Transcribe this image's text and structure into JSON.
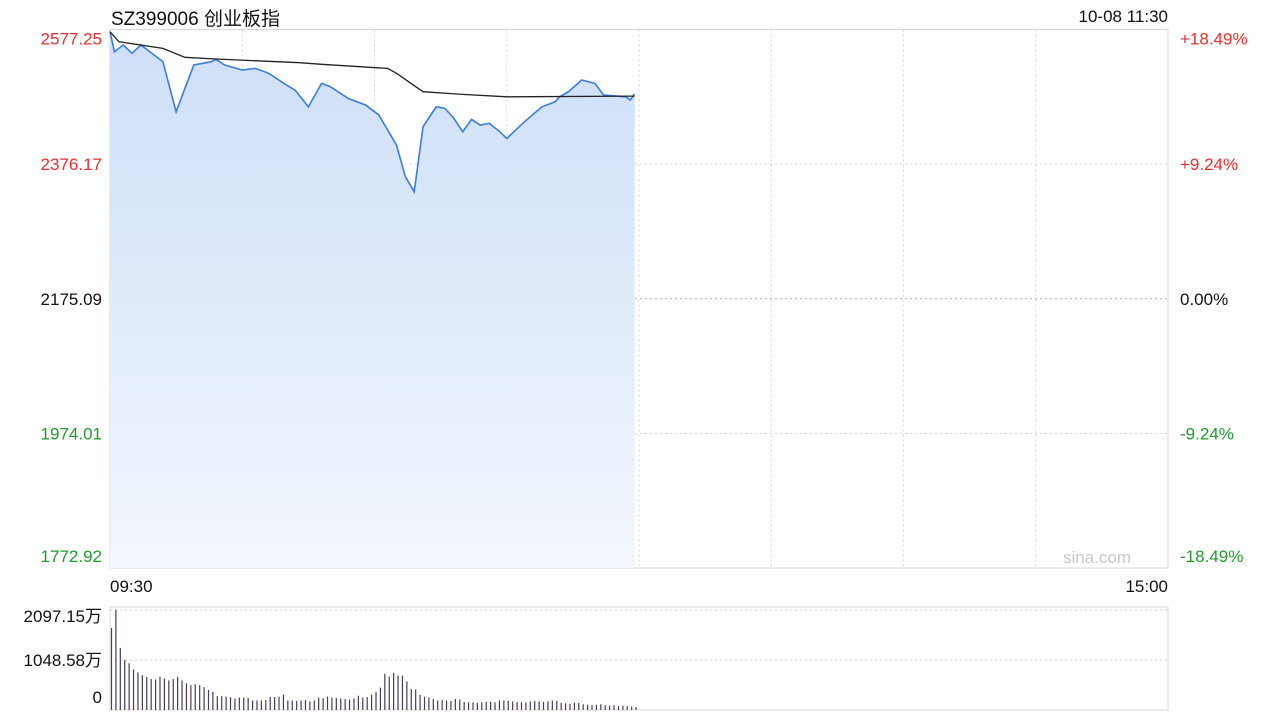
{
  "header": {
    "title": "SZ399006 创业板指",
    "datetime": "10-08 11:30"
  },
  "watermark": "sina.com",
  "colors": {
    "up": "#e8312f",
    "down": "#1e9b2a",
    "neutral": "#111111",
    "price_line": "#3b7ddd",
    "avg_line": "#222222",
    "fill": "#cddff8",
    "volume_bar": "#4a3a55"
  },
  "chart_data": [
    {
      "type": "line",
      "title": "SZ399006 创业板指",
      "prev_close": 2175.09,
      "ylim": [
        1772.92,
        2577.25
      ],
      "y_ticks": [
        "2577.25",
        "2376.17",
        "2175.09",
        "1974.01",
        "1772.92"
      ],
      "y_ticks_right": [
        "+18.49%",
        "+9.24%",
        "0.00%",
        "-9.24%",
        "-18.49%"
      ],
      "x_ticks": [
        "09:30",
        "15:00"
      ],
      "xlim": [
        "09:30",
        "15:00"
      ],
      "grid": true,
      "series": [
        {
          "type": "area",
          "points": [
            [
              "09:30",
              2574.0
            ],
            [
              "09:31",
              2544.1
            ],
            [
              "09:33",
              2554.1
            ],
            [
              "09:35",
              2541.7
            ],
            [
              "09:37",
              2554.1
            ],
            [
              "09:40",
              2539.1
            ],
            [
              "09:42",
              2529.1
            ],
            [
              "09:45",
              2454.4
            ],
            [
              "09:49",
              2524.2
            ],
            [
              "09:53",
              2529.1
            ],
            [
              "09:54",
              2532.7
            ],
            [
              "09:56",
              2524.2
            ],
            [
              "10:00",
              2516.7
            ],
            [
              "10:03",
              2519.2
            ],
            [
              "10:06",
              2511.8
            ],
            [
              "10:10",
              2494.3
            ],
            [
              "10:12",
              2486.8
            ],
            [
              "10:15",
              2461.8
            ],
            [
              "10:18",
              2496.8
            ],
            [
              "10:20",
              2491.8
            ],
            [
              "10:24",
              2474.4
            ],
            [
              "10:28",
              2464.4
            ],
            [
              "10:31",
              2449.4
            ],
            [
              "10:35",
              2404.6
            ],
            [
              "10:37",
              2357.2
            ],
            [
              "10:39",
              2334.8
            ],
            [
              "10:41",
              2431.9
            ],
            [
              "10:44",
              2461.8
            ],
            [
              "10:46",
              2459.3
            ],
            [
              "10:48",
              2444.5
            ],
            [
              "10:50",
              2424.5
            ],
            [
              "10:52",
              2443.0
            ],
            [
              "10:54",
              2434.5
            ],
            [
              "10:56",
              2437.0
            ],
            [
              "10:58",
              2427.0
            ],
            [
              "11:00",
              2414.6
            ],
            [
              "11:04",
              2439.4
            ],
            [
              "11:08",
              2461.8
            ],
            [
              "11:11",
              2469.3
            ],
            [
              "11:12",
              2476.8
            ],
            [
              "11:14",
              2484.3
            ],
            [
              "11:17",
              2501.8
            ],
            [
              "11:20",
              2496.8
            ],
            [
              "11:22",
              2479.3
            ],
            [
              "11:27",
              2476.8
            ],
            [
              "11:28",
              2471.9
            ],
            [
              "11:29",
              2480.8
            ]
          ]
        },
        {
          "type": "line",
          "points": [
            [
              "09:30",
              2574.0
            ],
            [
              "09:32",
              2559.0
            ],
            [
              "09:42",
              2549.0
            ],
            [
              "09:47",
              2535.7
            ],
            [
              "09:54",
              2533.2
            ],
            [
              "10:13",
              2527.6
            ],
            [
              "10:18",
              2525.2
            ],
            [
              "10:33",
              2519.2
            ],
            [
              "10:35",
              2511.8
            ],
            [
              "10:41",
              2484.3
            ],
            [
              "10:49",
              2480.8
            ],
            [
              "11:00",
              2476.8
            ],
            [
              "11:29",
              2477.8
            ]
          ]
        }
      ]
    },
    {
      "type": "bar",
      "unit": "万",
      "ylim": [
        0,
        2097.15
      ],
      "y_ticks": [
        "2097.15万",
        "1048.58万",
        "0"
      ],
      "start": "09:30",
      "values": [
        1720,
        2097,
        1300,
        1048,
        980,
        850,
        790,
        730,
        690,
        650,
        640,
        700,
        660,
        620,
        650,
        700,
        620,
        560,
        520,
        540,
        520,
        480,
        420,
        380,
        290,
        290,
        280,
        270,
        240,
        260,
        260,
        250,
        200,
        200,
        200,
        210,
        280,
        270,
        280,
        320,
        200,
        200,
        190,
        200,
        210,
        180,
        200,
        260,
        250,
        280,
        260,
        250,
        240,
        230,
        220,
        240,
        300,
        260,
        270,
        320,
        380,
        470,
        760,
        700,
        780,
        720,
        720,
        600,
        440,
        430,
        320,
        280,
        260,
        230,
        200,
        210,
        200,
        190,
        230,
        220,
        170,
        160,
        160,
        150,
        160,
        170,
        170,
        160,
        200,
        200,
        190,
        180,
        170,
        160,
        160,
        180,
        190,
        180,
        170,
        180,
        200,
        190,
        150,
        140,
        130,
        150,
        150,
        120,
        110,
        100,
        110,
        120,
        100,
        90,
        100,
        80,
        90,
        80,
        70,
        60
      ]
    }
  ]
}
